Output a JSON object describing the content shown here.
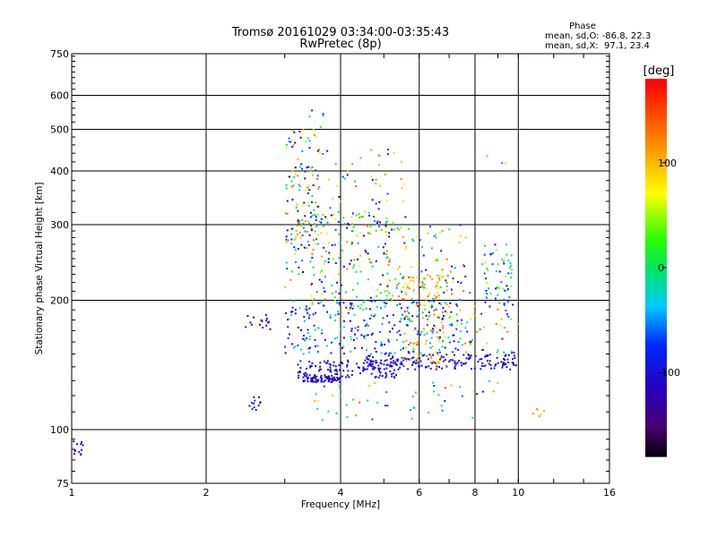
{
  "chart_data": {
    "type": "scatter",
    "title": "Tromsø 20161029 03:34:00-03:35:43",
    "subtitle": "RwPretec (8p)",
    "xlabel": "Frequency [MHz]",
    "ylabel": "Stationary phase Virtual Height [km]",
    "x_scale": "log",
    "y_scale": "log",
    "xlim": [
      1,
      16
    ],
    "ylim": [
      75,
      750
    ],
    "x_ticks": [
      "1",
      "2",
      "4",
      "6",
      "8",
      "10",
      "16"
    ],
    "y_ticks": [
      "75",
      "100",
      "200",
      "300",
      "400",
      "500",
      "600",
      "750"
    ],
    "grid": true,
    "stats": {
      "header": "Phase",
      "line_o": "mean, sd,O: -86.8, 22.3",
      "line_x": "mean, sd,X:  97.1, 23.4"
    },
    "colorbar": {
      "label": "[deg]",
      "ticks": [
        "100",
        "0",
        "-100"
      ],
      "range": [
        -180,
        180
      ]
    },
    "clusters": [
      {
        "x": [
          1.0,
          1.06
        ],
        "y": [
          86,
          95
        ],
        "n": 12,
        "phase": [
          -120,
          -90
        ]
      },
      {
        "x": [
          2.5,
          2.65
        ],
        "y": [
          110,
          123
        ],
        "n": 12,
        "phase": [
          -130,
          -60
        ]
      },
      {
        "x": [
          2.45,
          2.8
        ],
        "y": [
          168,
          185
        ],
        "n": 16,
        "phase": [
          -130,
          -80
        ]
      },
      {
        "x": [
          3.3,
          4.0
        ],
        "y": [
          129,
          133
        ],
        "n": 70,
        "phase": [
          -120,
          -95
        ]
      },
      {
        "x": [
          3.2,
          5.5
        ],
        "y": [
          132,
          145
        ],
        "n": 130,
        "phase": [
          -120,
          -85
        ]
      },
      {
        "x": [
          4.5,
          7.0
        ],
        "y": [
          138,
          150
        ],
        "n": 90,
        "phase": [
          -115,
          -70
        ]
      },
      {
        "x": [
          7.0,
          10.0
        ],
        "y": [
          138,
          150
        ],
        "n": 80,
        "phase": [
          -115,
          -85
        ]
      },
      {
        "x": [
          3.0,
          7.5
        ],
        "y": [
          150,
          200
        ],
        "n": 260,
        "phase": [
          -130,
          0
        ]
      },
      {
        "x": [
          5.5,
          7.0
        ],
        "y": [
          140,
          230
        ],
        "n": 120,
        "phase": [
          60,
          140
        ]
      },
      {
        "x": [
          3.0,
          5.2
        ],
        "y": [
          190,
          320
        ],
        "n": 200,
        "phase": [
          -150,
          140
        ]
      },
      {
        "x": [
          5.0,
          7.8
        ],
        "y": [
          190,
          300
        ],
        "n": 110,
        "phase": [
          -120,
          140
        ]
      },
      {
        "x": [
          8.3,
          9.7
        ],
        "y": [
          195,
          270
        ],
        "n": 60,
        "phase": [
          -120,
          60
        ]
      },
      {
        "x": [
          3.0,
          3.6
        ],
        "y": [
          260,
          500
        ],
        "n": 120,
        "phase": [
          -170,
          150
        ]
      },
      {
        "x": [
          3.55,
          5.6
        ],
        "y": [
          300,
          450
        ],
        "n": 60,
        "phase": [
          -120,
          140
        ]
      },
      {
        "x": [
          7.0,
          10.0
        ],
        "y": [
          150,
          200
        ],
        "n": 50,
        "phase": [
          -120,
          140
        ]
      },
      {
        "x": [
          3.5,
          9.0
        ],
        "y": [
          105,
          130
        ],
        "n": 50,
        "phase": [
          -100,
          150
        ]
      },
      {
        "x": [
          10.5,
          11.8
        ],
        "y": [
          107,
          112
        ],
        "n": 6,
        "phase": [
          90,
          130
        ]
      },
      {
        "x": [
          3.4,
          3.7
        ],
        "y": [
          470,
          560
        ],
        "n": 8,
        "phase": [
          -150,
          80
        ]
      },
      {
        "x": [
          8.3,
          9.5
        ],
        "y": [
          405,
          470
        ],
        "n": 3,
        "phase": [
          -110,
          120
        ]
      }
    ]
  }
}
